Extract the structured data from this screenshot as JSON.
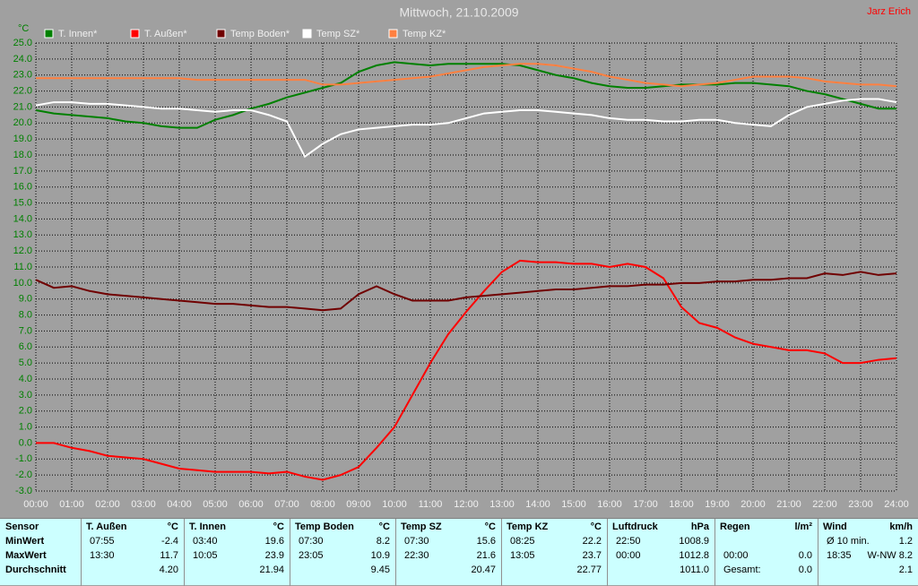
{
  "chart_data": {
    "type": "line",
    "title": "Mittwoch, 21.10.2009",
    "author": "Jarz Erich",
    "y_label": "°C",
    "x": [
      0,
      0.5,
      1,
      1.5,
      2,
      2.5,
      3,
      3.5,
      4,
      4.5,
      5,
      5.5,
      6,
      6.5,
      7,
      7.5,
      8,
      8.5,
      9,
      9.5,
      10,
      10.5,
      11,
      11.5,
      12,
      12.5,
      13,
      13.5,
      14,
      14.5,
      15,
      15.5,
      16,
      16.5,
      17,
      17.5,
      18,
      18.5,
      19,
      19.5,
      20,
      20.5,
      21,
      21.5,
      22,
      22.5,
      23,
      23.5,
      24
    ],
    "xlim": [
      0,
      24
    ],
    "xticks": [
      {
        "value": 0,
        "label": "00:00"
      },
      {
        "value": 1,
        "label": "01:00"
      },
      {
        "value": 2,
        "label": "02:00"
      },
      {
        "value": 3,
        "label": "03:00"
      },
      {
        "value": 4,
        "label": "04:00"
      },
      {
        "value": 5,
        "label": "05:00"
      },
      {
        "value": 6,
        "label": "06:00"
      },
      {
        "value": 7,
        "label": "07:00"
      },
      {
        "value": 8,
        "label": "08:00"
      },
      {
        "value": 9,
        "label": "09:00"
      },
      {
        "value": 10,
        "label": "10:00"
      },
      {
        "value": 11,
        "label": "11:00"
      },
      {
        "value": 12,
        "label": "12:00"
      },
      {
        "value": 13,
        "label": "13:00"
      },
      {
        "value": 14,
        "label": "14:00"
      },
      {
        "value": 15,
        "label": "15:00"
      },
      {
        "value": 16,
        "label": "16:00"
      },
      {
        "value": 17,
        "label": "17:00"
      },
      {
        "value": 18,
        "label": "18:00"
      },
      {
        "value": 19,
        "label": "19:00"
      },
      {
        "value": 20,
        "label": "20:00"
      },
      {
        "value": 21,
        "label": "21:00"
      },
      {
        "value": 22,
        "label": "22:00"
      },
      {
        "value": 23,
        "label": "23:00"
      },
      {
        "value": 24,
        "label": "24:00"
      }
    ],
    "ylim": [
      -3,
      25
    ],
    "yticks": [
      {
        "value": 25,
        "label": "25.0"
      },
      {
        "value": 24,
        "label": "24.0"
      },
      {
        "value": 23,
        "label": "23.0"
      },
      {
        "value": 22,
        "label": "22.0"
      },
      {
        "value": 21,
        "label": "21.0"
      },
      {
        "value": 20,
        "label": "20.0"
      },
      {
        "value": 19,
        "label": "19.0"
      },
      {
        "value": 18,
        "label": "18.0"
      },
      {
        "value": 17,
        "label": "17.0"
      },
      {
        "value": 16,
        "label": "16.0"
      },
      {
        "value": 15,
        "label": "15.0"
      },
      {
        "value": 14,
        "label": "14.0"
      },
      {
        "value": 13,
        "label": "13.0"
      },
      {
        "value": 12,
        "label": "12.0"
      },
      {
        "value": 11,
        "label": "11.0"
      },
      {
        "value": 10,
        "label": "10.0"
      },
      {
        "value": 9,
        "label": "9.0"
      },
      {
        "value": 8,
        "label": "8.0"
      },
      {
        "value": 7,
        "label": "7.0"
      },
      {
        "value": 6,
        "label": "6.0"
      },
      {
        "value": 5,
        "label": "5.0"
      },
      {
        "value": 4,
        "label": "4.0"
      },
      {
        "value": 3,
        "label": "3.0"
      },
      {
        "value": 2,
        "label": "2.0"
      },
      {
        "value": 1,
        "label": "1.0"
      },
      {
        "value": 0,
        "label": "0.0"
      },
      {
        "value": -1,
        "label": "-1.0"
      },
      {
        "value": -2,
        "label": "-2.0"
      },
      {
        "value": -3,
        "label": "-3.0"
      }
    ],
    "grid": true,
    "series": [
      {
        "name": "T. Innen*",
        "color": "#008000",
        "values": [
          20.8,
          20.6,
          20.5,
          20.4,
          20.3,
          20.1,
          20.0,
          19.8,
          19.7,
          19.7,
          20.2,
          20.5,
          20.9,
          21.2,
          21.6,
          21.9,
          22.2,
          22.5,
          23.2,
          23.6,
          23.8,
          23.7,
          23.6,
          23.7,
          23.7,
          23.7,
          23.7,
          23.6,
          23.3,
          23.0,
          22.8,
          22.5,
          22.3,
          22.2,
          22.2,
          22.3,
          22.4,
          22.4,
          22.4,
          22.5,
          22.5,
          22.4,
          22.3,
          22.0,
          21.8,
          21.5,
          21.2,
          20.9,
          20.9
        ]
      },
      {
        "name": "T. Außen*",
        "color": "#ff0000",
        "values": [
          0,
          0,
          -0.3,
          -0.5,
          -0.8,
          -0.9,
          -1.0,
          -1.3,
          -1.6,
          -1.7,
          -1.8,
          -1.8,
          -1.8,
          -1.9,
          -1.8,
          -2.1,
          -2.3,
          -2.0,
          -1.5,
          -0.3,
          1.0,
          3.0,
          5.0,
          6.8,
          8.2,
          9.5,
          10.7,
          11.4,
          11.3,
          11.3,
          11.2,
          11.2,
          11.0,
          11.2,
          11.0,
          10.3,
          8.5,
          7.5,
          7.2,
          6.6,
          6.2,
          6.0,
          5.8,
          5.8,
          5.6,
          5.0,
          5.0,
          5.2,
          5.3
        ]
      },
      {
        "name": "Temp Boden*",
        "color": "#700000",
        "values": [
          10.2,
          9.7,
          9.8,
          9.5,
          9.3,
          9.2,
          9.1,
          9.0,
          8.9,
          8.8,
          8.7,
          8.7,
          8.6,
          8.5,
          8.5,
          8.4,
          8.3,
          8.4,
          9.3,
          9.8,
          9.3,
          8.9,
          8.9,
          8.9,
          9.1,
          9.2,
          9.3,
          9.4,
          9.5,
          9.6,
          9.6,
          9.7,
          9.8,
          9.8,
          9.9,
          9.9,
          10.0,
          10.0,
          10.1,
          10.1,
          10.2,
          10.2,
          10.3,
          10.3,
          10.6,
          10.5,
          10.7,
          10.5,
          10.6
        ]
      },
      {
        "name": "Temp SZ*",
        "color": "#ffffff",
        "values": [
          21.1,
          21.3,
          21.3,
          21.2,
          21.2,
          21.1,
          21.0,
          20.9,
          20.9,
          20.8,
          20.7,
          20.8,
          20.8,
          20.5,
          20.1,
          17.9,
          18.7,
          19.3,
          19.6,
          19.7,
          19.8,
          19.9,
          19.9,
          20.0,
          20.3,
          20.6,
          20.7,
          20.8,
          20.8,
          20.7,
          20.6,
          20.5,
          20.3,
          20.2,
          20.2,
          20.1,
          20.1,
          20.2,
          20.2,
          20.0,
          19.9,
          19.8,
          20.5,
          21.0,
          21.2,
          21.4,
          21.5,
          21.5,
          21.3
        ]
      },
      {
        "name": "Temp KZ*",
        "color": "#ff8040",
        "values": [
          22.8,
          22.8,
          22.8,
          22.8,
          22.8,
          22.8,
          22.8,
          22.8,
          22.8,
          22.7,
          22.7,
          22.7,
          22.7,
          22.7,
          22.7,
          22.7,
          22.4,
          22.4,
          22.5,
          22.6,
          22.7,
          22.8,
          22.9,
          23.1,
          23.3,
          23.5,
          23.6,
          23.7,
          23.7,
          23.6,
          23.4,
          23.2,
          22.9,
          22.7,
          22.5,
          22.4,
          22.3,
          22.4,
          22.5,
          22.7,
          22.9,
          22.9,
          22.9,
          22.8,
          22.6,
          22.5,
          22.4,
          22.4,
          22.3
        ]
      }
    ]
  },
  "table": {
    "row_labels": [
      "Sensor",
      "MinWert",
      "MaxWert",
      "Durchschnitt"
    ],
    "groups": [
      {
        "name": "T. Außen",
        "unit": "°C",
        "rows": [
          {
            "time": "07:55",
            "value": "-2.4"
          },
          {
            "time": "13:30",
            "value": "11.7"
          },
          {
            "value": "4.20"
          }
        ]
      },
      {
        "name": "T. Innen",
        "unit": "°C",
        "rows": [
          {
            "time": "03:40",
            "value": "19.6"
          },
          {
            "time": "10:05",
            "value": "23.9"
          },
          {
            "value": "21.94"
          }
        ]
      },
      {
        "name": "Temp Boden",
        "unit": "°C",
        "rows": [
          {
            "time": "07:30",
            "value": "8.2"
          },
          {
            "time": "23:05",
            "value": "10.9"
          },
          {
            "value": "9.45"
          }
        ]
      },
      {
        "name": "Temp SZ",
        "unit": "°C",
        "rows": [
          {
            "time": "07:30",
            "value": "15.6"
          },
          {
            "time": "22:30",
            "value": "21.6"
          },
          {
            "value": "20.47"
          }
        ]
      },
      {
        "name": "Temp KZ",
        "unit": "°C",
        "rows": [
          {
            "time": "08:25",
            "value": "22.2"
          },
          {
            "time": "13:05",
            "value": "23.7"
          },
          {
            "value": "22.77"
          }
        ]
      },
      {
        "name": "Luftdruck",
        "unit": "hPa",
        "rows": [
          {
            "time": "22:50",
            "value": "1008.9"
          },
          {
            "time": "00:00",
            "value": "1012.8"
          },
          {
            "value": "1011.0"
          }
        ]
      },
      {
        "name": "Regen",
        "unit": "l/m²",
        "rows": [
          {},
          {
            "time": "00:00",
            "value": "0.0"
          },
          {
            "time": "Gesamt:",
            "value": "0.0"
          }
        ]
      },
      {
        "name": "Wind",
        "unit": "km/h",
        "rows": [
          {
            "time": "Ø 10 min.",
            "value": "1.2"
          },
          {
            "time": "18:35",
            "value": "W-NW 8.2"
          },
          {
            "value": "2.1"
          }
        ]
      }
    ]
  }
}
